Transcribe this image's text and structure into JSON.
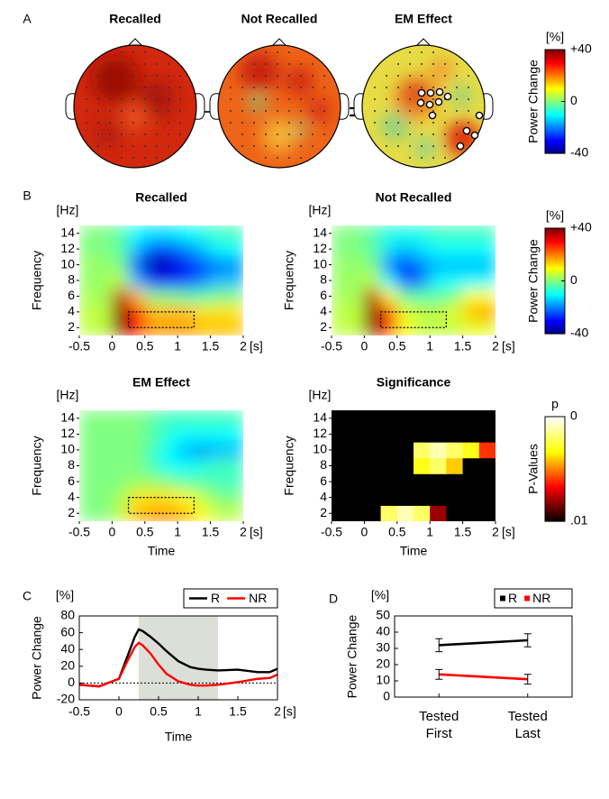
{
  "chart_data": [
    {
      "type": "topomap",
      "panel": "A",
      "title": "Recalled"
    },
    {
      "type": "topomap",
      "title": "Not Recalled"
    },
    {
      "type": "topomap",
      "title": "EM Effect"
    },
    {
      "type": "colorbar",
      "title": "[%]",
      "label": "Power Change",
      "colormap": "jet",
      "ylim": [
        -40,
        40
      ],
      "yticks": [
        {
          "value": 40,
          "label": "+40"
        },
        0,
        -40
      ]
    },
    {
      "type": "heatmap",
      "panel": "B",
      "title": "Recalled",
      "ylabel": "Frequency",
      "y_unit": "[Hz]",
      "x_unit": "[s]",
      "colormap": "jet",
      "clim": [
        -40,
        40
      ],
      "x": [
        -0.375,
        -0.125,
        0.125,
        0.375,
        0.625,
        0.875,
        1.125,
        1.375,
        1.625,
        1.875
      ],
      "y": [
        2,
        4,
        6,
        8,
        10,
        12,
        14
      ],
      "z": [
        [
          5,
          5,
          40,
          30,
          18,
          18,
          18,
          15,
          15,
          15
        ],
        [
          5,
          5,
          40,
          30,
          15,
          15,
          15,
          12,
          12,
          12
        ],
        [
          3,
          3,
          35,
          15,
          0,
          0,
          -3,
          -3,
          0,
          0
        ],
        [
          2,
          2,
          5,
          -15,
          -30,
          -30,
          -25,
          -20,
          -15,
          -15
        ],
        [
          2,
          2,
          0,
          -25,
          -38,
          -35,
          -30,
          -25,
          -20,
          -20
        ],
        [
          0,
          0,
          -3,
          -15,
          -25,
          -25,
          -20,
          -15,
          -10,
          -10
        ],
        [
          0,
          0,
          -3,
          -10,
          -12,
          -12,
          -10,
          -8,
          -5,
          -5
        ]
      ],
      "xlim": [
        -0.5,
        2
      ],
      "ylim": [
        1,
        15
      ],
      "xticks": [
        -0.5,
        0,
        0.5,
        1,
        1.5,
        2
      ],
      "yticks": [
        2,
        4,
        6,
        8,
        10,
        12,
        14
      ],
      "roi": {
        "x": [
          0.25,
          1.25
        ],
        "y": [
          2,
          4
        ]
      }
    },
    {
      "type": "heatmap",
      "title": "Not Recalled",
      "ylabel": "Frequency",
      "y_unit": "[Hz]",
      "x_unit": "[s]",
      "colormap": "jet",
      "clim": [
        -40,
        40
      ],
      "x": [
        -0.375,
        -0.125,
        0.125,
        0.375,
        0.625,
        0.875,
        1.125,
        1.375,
        1.625,
        1.875
      ],
      "y": [
        2,
        4,
        6,
        8,
        10,
        12,
        14
      ],
      "z": [
        [
          5,
          5,
          40,
          25,
          10,
          5,
          5,
          5,
          8,
          8
        ],
        [
          5,
          5,
          40,
          25,
          8,
          5,
          5,
          8,
          15,
          18
        ],
        [
          3,
          3,
          35,
          10,
          -2,
          -3,
          -3,
          0,
          10,
          10
        ],
        [
          2,
          2,
          5,
          -10,
          -25,
          -20,
          -10,
          -10,
          -10,
          -10
        ],
        [
          2,
          2,
          0,
          -20,
          -30,
          -20,
          -15,
          -15,
          -15,
          -15
        ],
        [
          0,
          0,
          -3,
          -12,
          -15,
          -12,
          -10,
          -10,
          -10,
          -10
        ],
        [
          0,
          0,
          -3,
          -8,
          -8,
          -8,
          -5,
          -5,
          -5,
          -5
        ]
      ],
      "xlim": [
        -0.5,
        2
      ],
      "ylim": [
        1,
        15
      ],
      "xticks": [
        -0.5,
        0,
        0.5,
        1,
        1.5,
        2
      ],
      "yticks": [
        2,
        4,
        6,
        8,
        10,
        12,
        14
      ],
      "roi": {
        "x": [
          0.25,
          1.25
        ],
        "y": [
          2,
          4
        ]
      }
    },
    {
      "type": "colorbar",
      "title": "[%]",
      "label": "Power Change",
      "colormap": "jet",
      "ylim": [
        -40,
        40
      ],
      "yticks": [
        {
          "value": 40,
          "label": "+40"
        },
        0,
        -40
      ]
    },
    {
      "type": "heatmap",
      "title": "EM Effect",
      "xlabel": "Time",
      "ylabel": "Frequency",
      "y_unit": "[Hz]",
      "x_unit": "[s]",
      "colormap": "jet",
      "clim": [
        -40,
        40
      ],
      "x": [
        -0.375,
        -0.125,
        0.125,
        0.375,
        0.625,
        0.875,
        1.125,
        1.375,
        1.625,
        1.875
      ],
      "y": [
        2,
        4,
        6,
        8,
        10,
        12,
        14
      ],
      "z": [
        [
          0,
          0,
          5,
          15,
          18,
          18,
          15,
          10,
          5,
          5
        ],
        [
          0,
          0,
          3,
          12,
          12,
          12,
          10,
          5,
          0,
          0
        ],
        [
          0,
          0,
          0,
          2,
          2,
          0,
          -3,
          -3,
          -5,
          -5
        ],
        [
          0,
          0,
          0,
          0,
          -5,
          -10,
          -10,
          -8,
          -5,
          -5
        ],
        [
          0,
          0,
          0,
          0,
          -5,
          -10,
          -15,
          -18,
          -15,
          -15
        ],
        [
          0,
          0,
          0,
          0,
          -3,
          -8,
          -10,
          -10,
          -10,
          -10
        ],
        [
          0,
          0,
          0,
          0,
          -3,
          -5,
          -5,
          -5,
          -5,
          -5
        ]
      ],
      "xlim": [
        -0.5,
        2
      ],
      "ylim": [
        1,
        15
      ],
      "xticks": [
        -0.5,
        0,
        0.5,
        1,
        1.5,
        2
      ],
      "yticks": [
        2,
        4,
        6,
        8,
        10,
        12,
        14
      ],
      "roi": {
        "x": [
          0.25,
          1.25
        ],
        "y": [
          2,
          4
        ]
      }
    },
    {
      "type": "heatmap",
      "title": "Significance",
      "xlabel": "Time",
      "ylabel": "Frequency",
      "y_unit": "[Hz]",
      "x_unit": "[s]",
      "colormap": "hot_r",
      "clim": [
        0,
        0.01
      ],
      "x": [
        -0.375,
        -0.125,
        0.125,
        0.375,
        0.625,
        0.875,
        1.125,
        1.375,
        1.625,
        1.875
      ],
      "y": [
        2,
        4,
        6,
        8,
        10,
        12,
        14
      ],
      "z": [
        [
          0.01,
          0.01,
          0.01,
          0.002,
          0.001,
          0.002,
          0.008,
          0.01,
          0.01,
          0.01
        ],
        [
          0.01,
          0.01,
          0.01,
          0.01,
          0.01,
          0.01,
          0.01,
          0.01,
          0.01,
          0.01
        ],
        [
          0.01,
          0.01,
          0.01,
          0.01,
          0.01,
          0.01,
          0.01,
          0.01,
          0.01,
          0.01
        ],
        [
          0.01,
          0.01,
          0.01,
          0.01,
          0.01,
          0.003,
          0.002,
          0.004,
          0.01,
          0.01
        ],
        [
          0.01,
          0.01,
          0.01,
          0.01,
          0.01,
          0.002,
          0.001,
          0.002,
          0.003,
          0.006
        ],
        [
          0.01,
          0.01,
          0.01,
          0.01,
          0.01,
          0.01,
          0.01,
          0.01,
          0.01,
          0.01
        ],
        [
          0.01,
          0.01,
          0.01,
          0.01,
          0.01,
          0.01,
          0.01,
          0.01,
          0.01,
          0.01
        ]
      ],
      "xlim": [
        -0.5,
        2
      ],
      "ylim": [
        1,
        15
      ],
      "xticks": [
        -0.5,
        0,
        0.5,
        1,
        1.5,
        2
      ],
      "yticks": [
        2,
        4,
        6,
        8,
        10,
        12,
        14
      ]
    },
    {
      "type": "colorbar",
      "title": "p",
      "label": "P-Values",
      "colormap": "hot_r",
      "ylim": [
        0.01,
        0
      ],
      "yticks": [
        0,
        {
          "value": 0.01,
          "label": ".01"
        }
      ]
    },
    {
      "type": "line",
      "panel": "C",
      "x": [
        -0.5,
        -0.25,
        0,
        0.1,
        0.2,
        0.25,
        0.3,
        0.4,
        0.5,
        0.6,
        0.75,
        0.9,
        1,
        1.1,
        1.25,
        1.5,
        1.75,
        1.9,
        2
      ],
      "series": [
        {
          "name": "R",
          "color": "#000000",
          "values": [
            -2,
            -4,
            5,
            30,
            55,
            64,
            62,
            55,
            47,
            38,
            26,
            19,
            17,
            16,
            15,
            16,
            13,
            13,
            17
          ]
        },
        {
          "name": "NR",
          "color": "#ff0000",
          "values": [
            -2,
            -4,
            5,
            25,
            43,
            48,
            45,
            35,
            22,
            11,
            2,
            -2,
            -3,
            -3,
            -2,
            1,
            5,
            6,
            10
          ]
        }
      ],
      "xlim": [
        -0.5,
        2
      ],
      "xticks": [
        -0.5,
        0,
        0.5,
        1,
        1.5,
        2
      ],
      "ylim": [
        -20,
        80
      ],
      "yticks": [
        -20,
        0,
        20,
        40,
        60,
        80
      ],
      "xlabel": "Time",
      "ylabel": "Power Change",
      "x_unit": "[s]",
      "y_unit": "[%]",
      "shade": [
        0.25,
        1.25
      ],
      "shade_color": "#dcdfd8",
      "hline": 0,
      "legend": "upper right"
    },
    {
      "type": "errorbar",
      "panel": "D",
      "categories": [
        "Tested First",
        "Tested Last"
      ],
      "series": [
        {
          "name": "R",
          "color": "#000000",
          "values": [
            32,
            35
          ],
          "errors": [
            4,
            4
          ]
        },
        {
          "name": "NR",
          "color": "#ff0000",
          "values": [
            14,
            11
          ],
          "errors": [
            3,
            3
          ]
        }
      ],
      "ylim": [
        0,
        50
      ],
      "yticks": [
        0,
        10,
        20,
        30,
        40,
        50
      ],
      "ylabel": "Power Change",
      "y_unit": "[%]",
      "legend": "upper right"
    }
  ]
}
